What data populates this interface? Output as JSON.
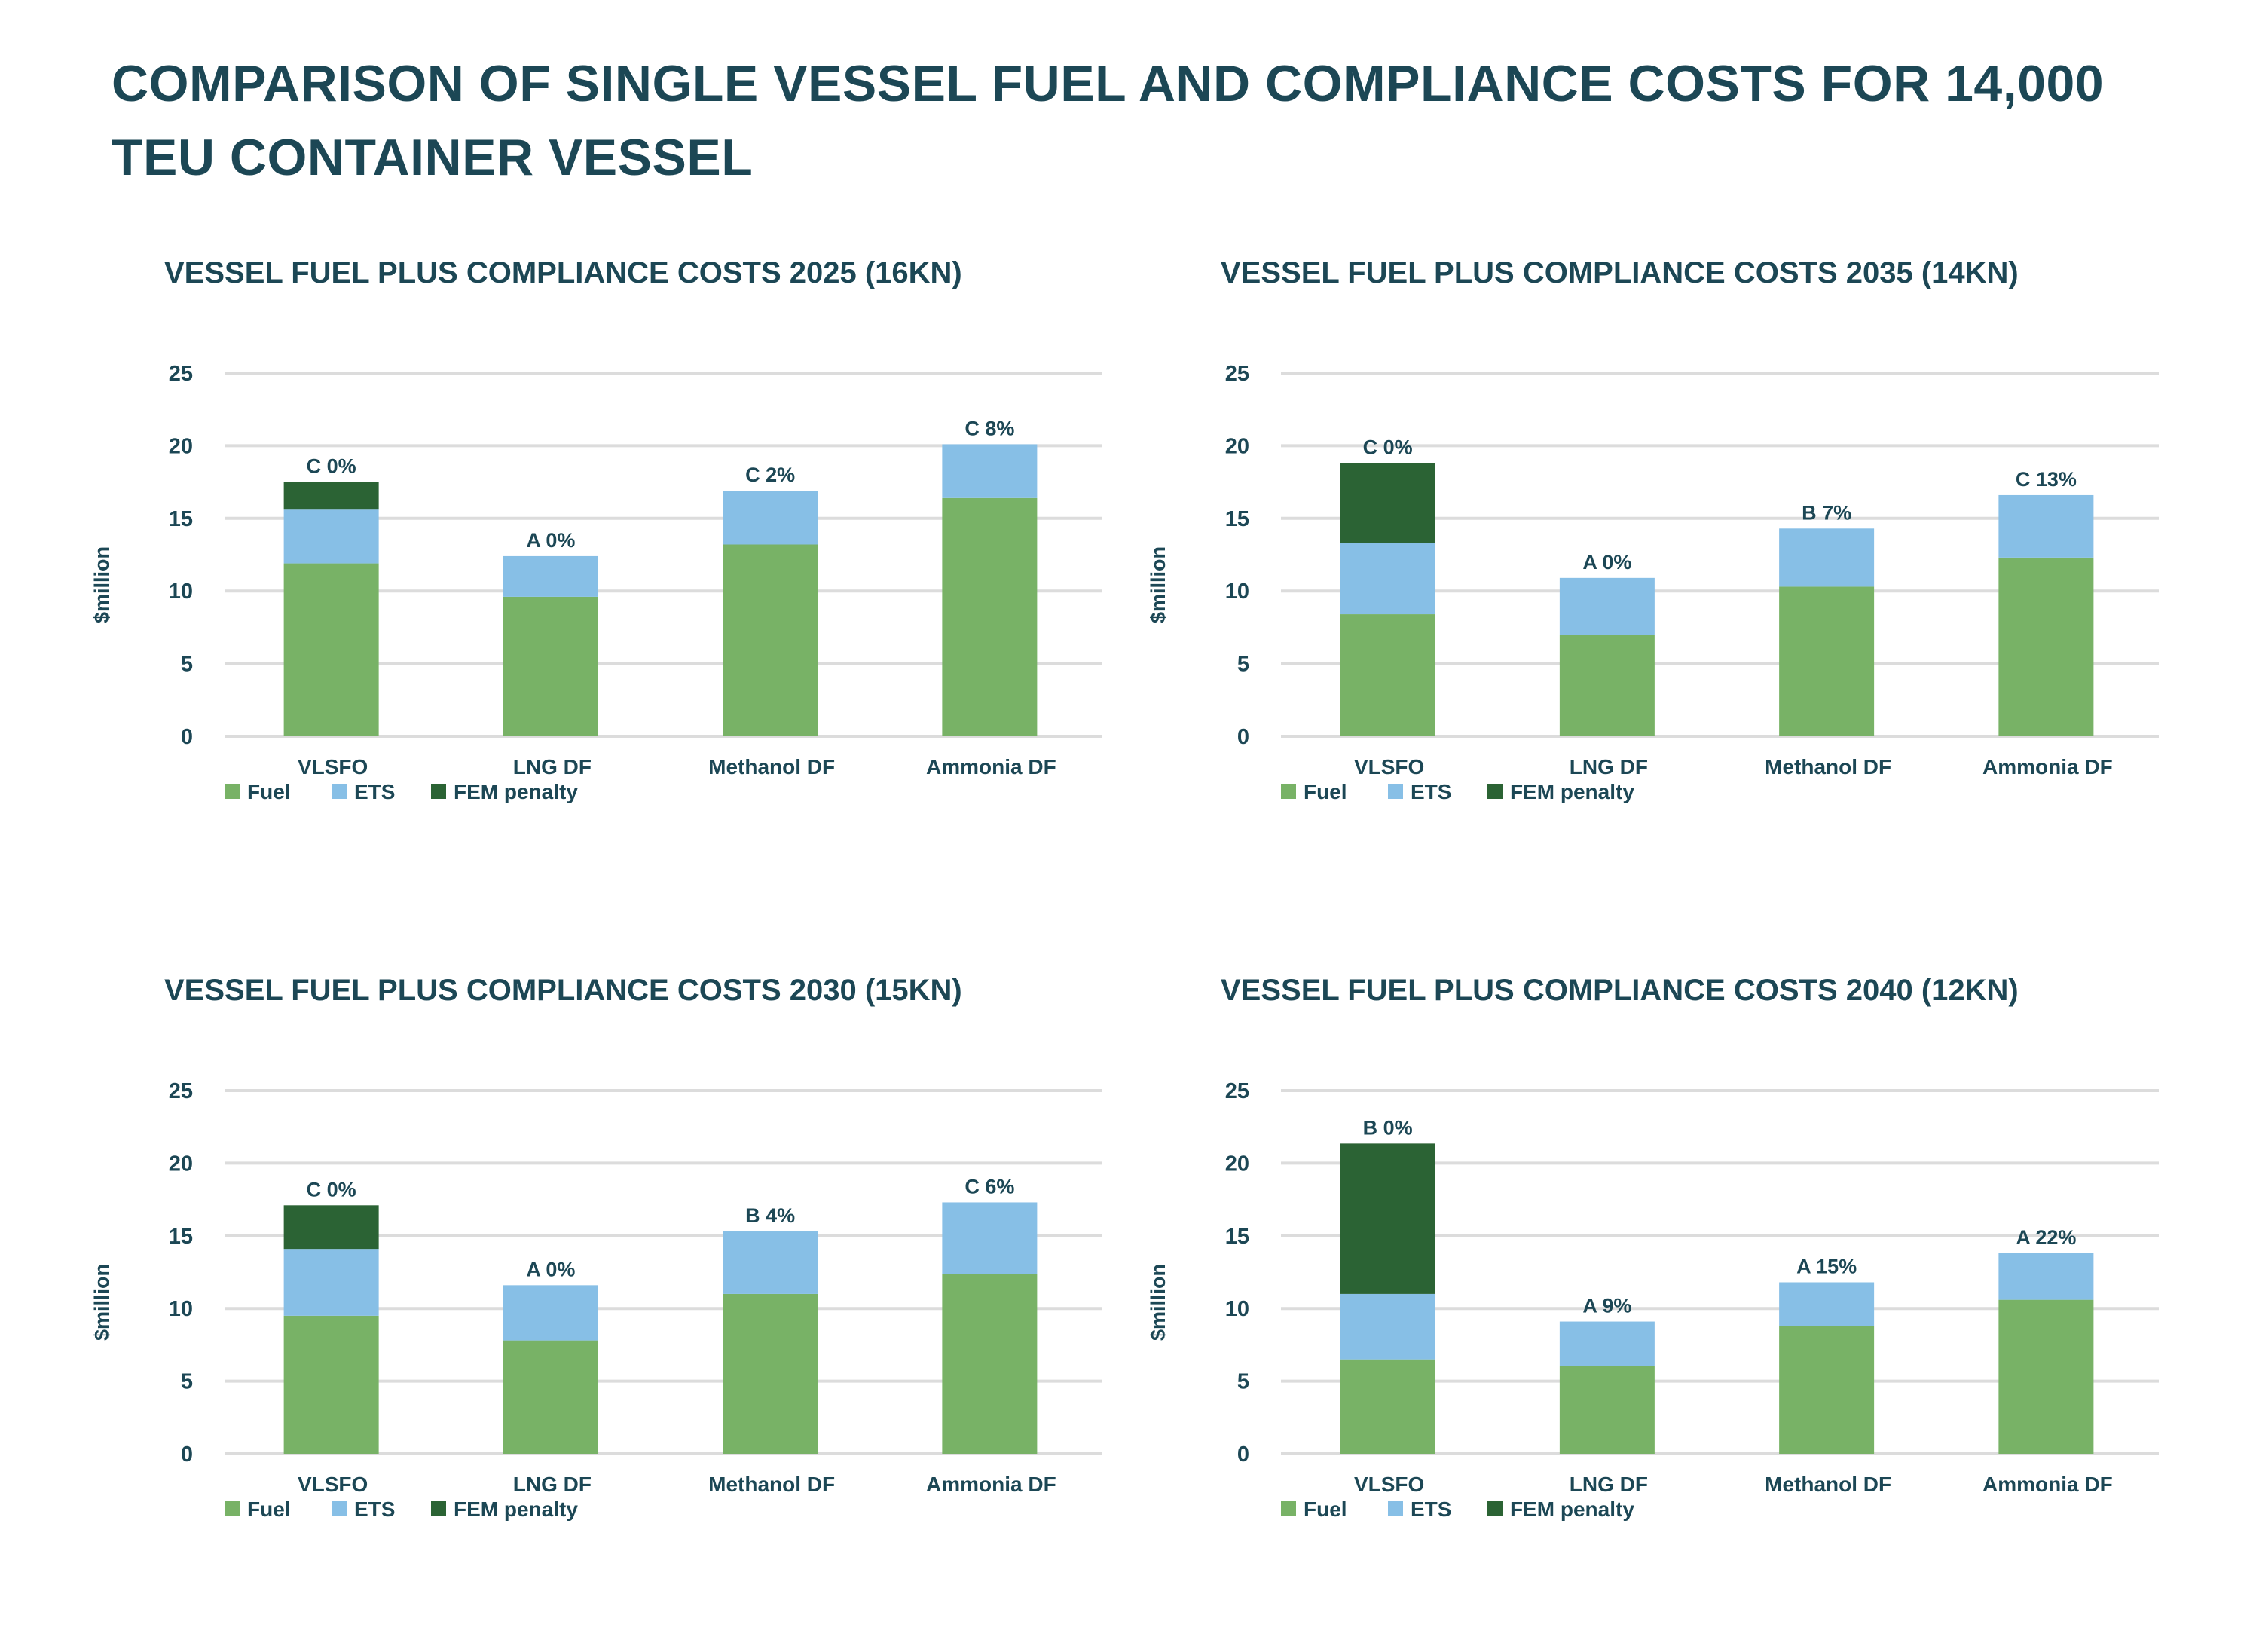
{
  "page": {
    "title": "COMPARISON OF SINGLE VESSEL FUEL AND COMPLIANCE COSTS FOR 14,000 TEU CONTAINER VESSEL"
  },
  "colors": {
    "Fuel": "#78b266",
    "ETS": "#87bfe6",
    "FEM penalty": "#2b6334",
    "text": "#1c4755",
    "grid": "#dcdcdc"
  },
  "chart_data": [
    {
      "type": "bar",
      "stacked": true,
      "title": "VESSEL FUEL PLUS COMPLIANCE COSTS 2025 (16KN)",
      "xlabel": "",
      "ylabel": "$million",
      "ylim": [
        0,
        25
      ],
      "yticks": [
        0,
        5,
        10,
        15,
        20,
        25
      ],
      "grid": true,
      "legend": "bottom-left",
      "categories": [
        "VLSFO",
        "LNG DF",
        "Methanol DF",
        "Ammonia DF"
      ],
      "series": [
        {
          "name": "Fuel",
          "values": [
            11.9,
            9.6,
            13.2,
            16.4
          ]
        },
        {
          "name": "ETS",
          "values": [
            3.7,
            2.8,
            3.7,
            3.7
          ]
        },
        {
          "name": "FEM penalty",
          "values": [
            1.9,
            0,
            0,
            0
          ]
        }
      ],
      "annotations": [
        "C 0%",
        "A 0%",
        "C 2%",
        "C 8%"
      ]
    },
    {
      "type": "bar",
      "stacked": true,
      "title": "VESSEL FUEL PLUS COMPLIANCE COSTS 2035 (14KN)",
      "xlabel": "",
      "ylabel": "$million",
      "ylim": [
        0,
        25
      ],
      "yticks": [
        0,
        5,
        10,
        15,
        20,
        25
      ],
      "grid": true,
      "legend": "bottom-left",
      "categories": [
        "VLSFO",
        "LNG DF",
        "Methanol DF",
        "Ammonia DF"
      ],
      "series": [
        {
          "name": "Fuel",
          "values": [
            8.4,
            7.0,
            10.3,
            12.3
          ]
        },
        {
          "name": "ETS",
          "values": [
            4.9,
            3.9,
            4.0,
            4.3
          ]
        },
        {
          "name": "FEM penalty",
          "values": [
            5.5,
            0,
            0,
            0
          ]
        }
      ],
      "annotations": [
        "C 0%",
        "A 0%",
        "B 7%",
        "C 13%"
      ]
    },
    {
      "type": "bar",
      "stacked": true,
      "title": "VESSEL FUEL PLUS COMPLIANCE COSTS 2030 (15KN)",
      "xlabel": "",
      "ylabel": "$million",
      "ylim": [
        0,
        25
      ],
      "yticks": [
        0,
        5,
        10,
        15,
        20,
        25
      ],
      "grid": true,
      "legend": "bottom-left",
      "categories": [
        "VLSFO",
        "LNG DF",
        "Methanol DF",
        "Ammonia DF"
      ],
      "series": [
        {
          "name": "Fuel",
          "values": [
            9.5,
            7.8,
            11.0,
            12.35
          ]
        },
        {
          "name": "ETS",
          "values": [
            4.6,
            3.8,
            4.3,
            4.95
          ]
        },
        {
          "name": "FEM penalty",
          "values": [
            3.0,
            0,
            0,
            0
          ]
        }
      ],
      "annotations": [
        "C 0%",
        "A 0%",
        "B 4%",
        "C 6%"
      ]
    },
    {
      "type": "bar",
      "stacked": true,
      "title": "VESSEL FUEL PLUS COMPLIANCE COSTS 2040 (12KN)",
      "xlabel": "",
      "ylabel": "$million",
      "ylim": [
        0,
        25
      ],
      "yticks": [
        0,
        5,
        10,
        15,
        20,
        25
      ],
      "grid": true,
      "legend": "bottom-left",
      "categories": [
        "VLSFO",
        "LNG DF",
        "Methanol DF",
        "Ammonia DF"
      ],
      "series": [
        {
          "name": "Fuel",
          "values": [
            6.5,
            6.05,
            8.8,
            10.6
          ]
        },
        {
          "name": "ETS",
          "values": [
            4.5,
            3.05,
            3.0,
            3.2
          ]
        },
        {
          "name": "FEM penalty",
          "values": [
            10.35,
            0,
            0,
            0
          ]
        }
      ],
      "annotations": [
        "B 0%",
        "A 9%",
        "A 15%",
        "A 22%"
      ]
    }
  ]
}
